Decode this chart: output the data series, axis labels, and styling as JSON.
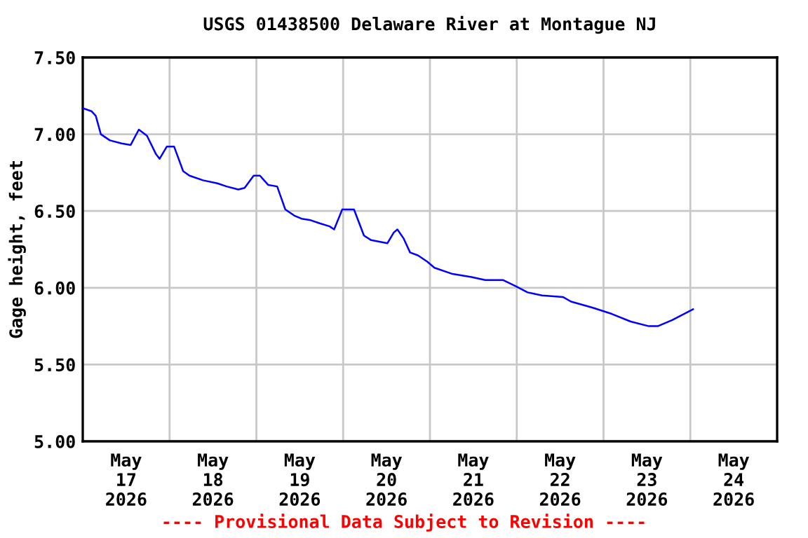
{
  "chart_data": {
    "type": "line",
    "title": "USGS 01438500 Delaware River at Montague NJ",
    "ylabel": "Gage height, feet",
    "annotations": [
      "---- Provisional Data Subject to Revision ----"
    ],
    "x": [
      "2026-05-17T00:00",
      "2026-05-17T02:24",
      "2026-05-17T03:36",
      "2026-05-17T05:00",
      "2026-05-17T07:30",
      "2026-05-17T10:45",
      "2026-05-17T13:15",
      "2026-05-17T15:30",
      "2026-05-17T17:45",
      "2026-05-17T20:15",
      "2026-05-17T21:15",
      "2026-05-17T23:15",
      "2026-05-18T01:15",
      "2026-05-18T03:45",
      "2026-05-18T05:30",
      "2026-05-18T09:15",
      "2026-05-18T13:15",
      "2026-05-18T15:45",
      "2026-05-18T19:00",
      "2026-05-18T20:45",
      "2026-05-18T23:15",
      "2026-05-19T01:00",
      "2026-05-19T03:15",
      "2026-05-19T05:45",
      "2026-05-19T08:00",
      "2026-05-19T10:30",
      "2026-05-19T12:30",
      "2026-05-19T15:00",
      "2026-05-19T17:30",
      "2026-05-19T20:15",
      "2026-05-19T21:30",
      "2026-05-19T23:45",
      "2026-05-20T03:00",
      "2026-05-20T05:45",
      "2026-05-20T07:45",
      "2026-05-20T12:15",
      "2026-05-20T14:00",
      "2026-05-20T15:00",
      "2026-05-20T16:45",
      "2026-05-20T18:30",
      "2026-05-20T20:45",
      "2026-05-20T23:15",
      "2026-05-21T01:15",
      "2026-05-21T06:15",
      "2026-05-21T11:30",
      "2026-05-21T15:15",
      "2026-05-21T20:15",
      "2026-05-21T23:45",
      "2026-05-22T03:00",
      "2026-05-22T07:00",
      "2026-05-22T12:45",
      "2026-05-22T15:00",
      "2026-05-22T21:00",
      "2026-05-23T02:15",
      "2026-05-23T07:30",
      "2026-05-23T12:30",
      "2026-05-23T15:00",
      "2026-05-23T19:00",
      "2026-05-24T00:45"
    ],
    "series": [
      {
        "color": "#0000ff",
        "values": [
          7.17,
          7.15,
          7.12,
          7.0,
          6.96,
          6.94,
          6.93,
          7.03,
          6.99,
          6.87,
          6.84,
          6.92,
          6.92,
          6.76,
          6.73,
          6.7,
          6.68,
          6.66,
          6.64,
          6.65,
          6.73,
          6.73,
          6.67,
          6.66,
          6.51,
          6.47,
          6.45,
          6.44,
          6.42,
          6.4,
          6.38,
          6.51,
          6.51,
          6.34,
          6.31,
          6.29,
          6.36,
          6.38,
          6.32,
          6.23,
          6.21,
          6.17,
          6.13,
          6.09,
          6.07,
          6.05,
          6.05,
          6.01,
          5.97,
          5.95,
          5.94,
          5.91,
          5.87,
          5.83,
          5.78,
          5.75,
          5.75,
          5.79,
          5.86
        ]
      }
    ],
    "xlim": [
      "2026-05-17T00:00",
      "2026-05-25T00:00"
    ],
    "xticks": [
      {
        "value": "2026-05-17T12:00",
        "label": "May\n17\n2026"
      },
      {
        "value": "2026-05-18T12:00",
        "label": "May\n18\n2026"
      },
      {
        "value": "2026-05-19T12:00",
        "label": "May\n19\n2026"
      },
      {
        "value": "2026-05-20T12:00",
        "label": "May\n20\n2026"
      },
      {
        "value": "2026-05-21T12:00",
        "label": "May\n21\n2026"
      },
      {
        "value": "2026-05-22T12:00",
        "label": "May\n22\n2026"
      },
      {
        "value": "2026-05-23T12:00",
        "label": "May\n23\n2026"
      },
      {
        "value": "2026-05-24T12:00",
        "label": "May\n24\n2026"
      },
      {
        "value": "2026-05-18T00:00",
        "label": null
      },
      {
        "value": "2026-05-19T00:00",
        "label": null
      },
      {
        "value": "2026-05-20T00:00",
        "label": null
      },
      {
        "value": "2026-05-21T00:00",
        "label": null
      },
      {
        "value": "2026-05-22T00:00",
        "label": null
      },
      {
        "value": "2026-05-23T00:00",
        "label": null
      },
      {
        "value": "2026-05-24T00:00",
        "label": null
      }
    ],
    "ylim": [
      5.0,
      7.5
    ],
    "yticks": [
      {
        "value": 5.0,
        "label": "5.00"
      },
      {
        "value": 5.5,
        "label": "5.50"
      },
      {
        "value": 6.0,
        "label": "6.00"
      },
      {
        "value": 6.5,
        "label": "6.50"
      },
      {
        "value": 7.0,
        "label": "7.00"
      },
      {
        "value": 7.5,
        "label": "7.50"
      }
    ],
    "grid": true,
    "marker": "none",
    "line_style": "solid"
  }
}
